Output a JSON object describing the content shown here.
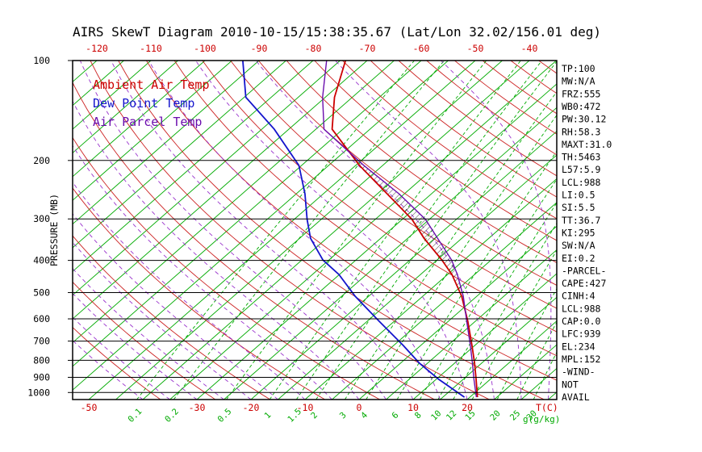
{
  "title": "AIRS SkewT Diagram 2010-10-15/15:38:35.67 (Lat/Lon 32.02/156.01 deg)",
  "colors": {
    "temp": "#cc0000",
    "dewpoint": "#1414cc",
    "parcel": "#6a0dad",
    "isotherm": "#00aa00",
    "dry_adiabat": "#cc2222",
    "mixing_ratio": "#00aa00",
    "moist_adiabat": "#9932cc",
    "hatch": "#111111"
  },
  "legend": [
    {
      "label": "Ambient Air Temp",
      "color_key": "temp"
    },
    {
      "label": "Dew Point Temp",
      "color_key": "dewpoint"
    },
    {
      "label": "Air Parcel Temp",
      "color_key": "parcel"
    }
  ],
  "axes": {
    "pressure_label": "PRESSURE (MB)",
    "pressure_ticks": [
      100,
      200,
      300,
      400,
      500,
      600,
      700,
      800,
      900,
      1000
    ],
    "top_temp_ticks": [
      -120,
      -110,
      -100,
      -90,
      -80,
      -70,
      -60,
      -50,
      -40
    ],
    "bottom_temp_ticks": [
      -50,
      -30,
      -20,
      -10,
      0,
      10,
      20
    ],
    "bottom_temp_unit": "T(C)",
    "mixing_ratio_unit": "g(g/kg)"
  },
  "stats": [
    "TP:100",
    "MW:N/A",
    "FRZ:555",
    "WB0:472",
    "PW:30.12",
    "RH:58.3",
    "MAXT:31.0",
    "TH:5463",
    "L57:5.9",
    "LCL:988",
    "LI:0.5",
    "SI:5.5",
    "TT:36.7",
    "KI:295",
    "SW:N/A",
    "EI:0.2",
    "-PARCEL-",
    "CAPE:427",
    "CINH:4",
    "LCL:988",
    "CAP:0.0",
    "LFC:939",
    "EL:234",
    "MPL:152",
    "-WIND-",
    "NOT",
    "AVAIL"
  ],
  "chart_data": {
    "type": "line",
    "title": "AIRS SkewT Diagram 2010-10-15/15:38:35.67 (Lat/Lon 32.02/156.01 deg)",
    "x_axis": "Temperature (C), skewed isotherms",
    "y_axis": "Pressure (MB), log scale",
    "pressure_range": [
      100,
      1050
    ],
    "top_axis_temp_range": [
      -120,
      -40
    ],
    "sounding": [
      {
        "p": 1033,
        "t": 21.4,
        "td": 19.0
      },
      {
        "p": 913,
        "t": 17.4,
        "td": 10.5
      },
      {
        "p": 816,
        "t": 13.7,
        "td": 3.5
      },
      {
        "p": 722,
        "t": 9.5,
        "td": -3.2
      },
      {
        "p": 610,
        "t": 3.6,
        "td": -12.8
      },
      {
        "p": 513,
        "t": -2.8,
        "td": -22.5
      },
      {
        "p": 441,
        "t": -9.2,
        "td": -30.1
      },
      {
        "p": 399,
        "t": -14.1,
        "td": -36.1
      },
      {
        "p": 343,
        "t": -22.0,
        "td": -43.0
      },
      {
        "p": 301,
        "t": -28.2,
        "td": -47.6
      },
      {
        "p": 252,
        "t": -38.2,
        "td": -53.4
      },
      {
        "p": 207,
        "t": -49.3,
        "td": -60.5
      },
      {
        "p": 161,
        "t": -62.0,
        "td": -72.7
      },
      {
        "p": 129,
        "t": -68.3,
        "td": -84.7
      },
      {
        "p": 100,
        "t": -74.0,
        "td": -93.0
      }
    ],
    "parcel_curve": [
      {
        "p": 1033,
        "t": 21.2
      },
      {
        "p": 913,
        "t": 17.0
      },
      {
        "p": 816,
        "t": 13.3
      },
      {
        "p": 722,
        "t": 9.2
      },
      {
        "p": 610,
        "t": 3.4
      },
      {
        "p": 513,
        "t": -2.5
      },
      {
        "p": 441,
        "t": -8.2
      },
      {
        "p": 399,
        "t": -12.3
      },
      {
        "p": 343,
        "t": -19.5
      },
      {
        "p": 301,
        "t": -25.7
      },
      {
        "p": 252,
        "t": -36.0
      },
      {
        "p": 207,
        "t": -48.5
      },
      {
        "p": 161,
        "t": -63.5
      },
      {
        "p": 129,
        "t": -70.5
      },
      {
        "p": 100,
        "t": -77.5
      }
    ],
    "background": {
      "isotherms": {
        "min": -120,
        "max": 40,
        "step": 5
      },
      "dry_adiabats": {
        "min": -40,
        "max": 180,
        "step": 10
      },
      "moist_adiabats": {
        "min": -40,
        "max": 40,
        "step": 5
      },
      "mixing_ratios": [
        0.1,
        0.2,
        0.5,
        1,
        1.5,
        2,
        3,
        4,
        6,
        8,
        10,
        12,
        15,
        20,
        25,
        30
      ]
    }
  }
}
